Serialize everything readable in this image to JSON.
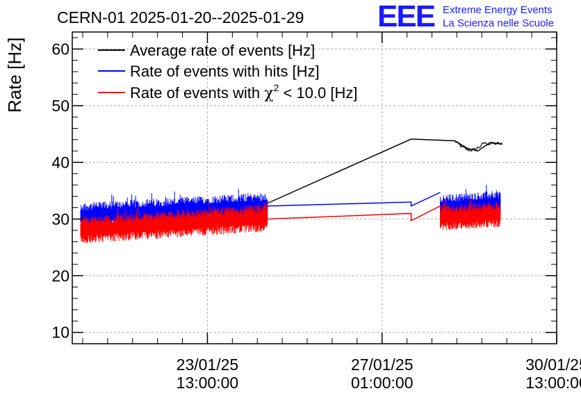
{
  "header": {
    "title": "CERN-01 2025-01-20--2025-01-29",
    "logo_text": "EEE",
    "org_line1": "Extreme Energy Events",
    "org_line2": "La Scienza nelle Scuole"
  },
  "colors": {
    "average": "#000000",
    "hits": "#0000ff",
    "chi2": "#ff0000",
    "logo": "#1a1aff",
    "grid": "#aaaaaa"
  },
  "chart_data": {
    "type": "line",
    "title": "CERN-01 2025-01-20--2025-01-29",
    "ylabel": "Rate [Hz]",
    "xlabel": "",
    "ylim": [
      8,
      63
    ],
    "yticks": [
      10,
      20,
      30,
      40,
      50,
      60
    ],
    "x_axis_type": "time",
    "x_ticks": [
      {
        "date": "23/01/25",
        "time": "13:00:00"
      },
      {
        "date": "27/01/25",
        "time": "01:00:00"
      },
      {
        "date": "30/01/25",
        "time": "13:00:00"
      }
    ],
    "xlim": [
      "2025-01-20T20:00:00",
      "2025-01-30T13:00:00"
    ],
    "grid": true,
    "legend_position": "top-left",
    "legend": {
      "avg": "Average rate of events [Hz]",
      "hits": "Rate of events with hits [Hz]",
      "chi2_prefix": "Rate of events with ",
      "chi2_symbol": "χ",
      "chi2_sup": "2",
      "chi2_suffix": " < 10.0 [Hz]"
    },
    "series": [
      {
        "name": "Average rate of events [Hz]",
        "color": "#000000",
        "points": [
          [
            "2025-01-24T18:00:00",
            32.8
          ],
          [
            "2025-01-27T15:00:00",
            44.1
          ],
          [
            "2025-01-28T12:00:00",
            43.8
          ],
          [
            "2025-01-28T18:00:00",
            42.5
          ],
          [
            "2025-01-28T23:00:00",
            42.0
          ],
          [
            "2025-01-29T05:00:00",
            43.5
          ],
          [
            "2025-01-29T11:00:00",
            43.2
          ]
        ]
      },
      {
        "name": "Rate of events with hits [Hz]",
        "color": "#0000ff",
        "noisy_segments": [
          {
            "start": "2025-01-21T00:00:00",
            "end": "2025-01-24T18:00:00",
            "mean_start": 30.5,
            "mean_end": 32.3,
            "spread": 1.6
          },
          {
            "start": "2025-01-28T05:00:00",
            "end": "2025-01-29T10:00:00",
            "mean_start": 32.0,
            "mean_end": 32.8,
            "spread": 1.5
          }
        ],
        "points": [
          [
            "2025-01-24T18:00:00",
            32.3
          ],
          [
            "2025-01-27T15:00:00",
            33.0
          ],
          [
            "2025-01-27T15:00:00",
            32.3
          ],
          [
            "2025-01-28T05:00:00",
            34.7
          ]
        ]
      },
      {
        "name": "Rate of events with χ2 < 10.0 [Hz]",
        "color": "#ff0000",
        "noisy_segments": [
          {
            "start": "2025-01-21T00:00:00",
            "end": "2025-01-24T18:00:00",
            "mean_start": 28.0,
            "mean_end": 30.2,
            "spread": 1.6
          },
          {
            "start": "2025-01-28T05:00:00",
            "end": "2025-01-29T10:00:00",
            "mean_start": 30.2,
            "mean_end": 30.8,
            "spread": 1.5
          }
        ],
        "points": [
          [
            "2025-01-24T18:00:00",
            30.0
          ],
          [
            "2025-01-27T15:00:00",
            31.0
          ],
          [
            "2025-01-27T15:00:00",
            29.7
          ],
          [
            "2025-01-28T05:00:00",
            32.3
          ]
        ]
      }
    ]
  }
}
